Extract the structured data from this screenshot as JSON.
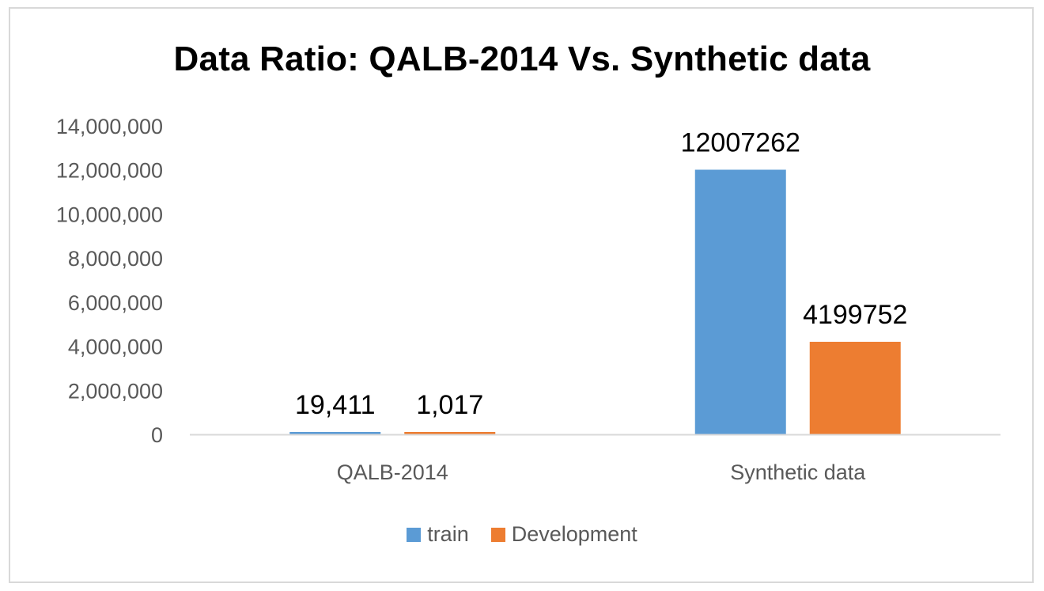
{
  "chart_data": {
    "type": "bar",
    "title": "Data Ratio: QALB-2014 Vs. Synthetic data",
    "xlabel": "",
    "ylabel": "",
    "categories": [
      "QALB-2014",
      "Synthetic data"
    ],
    "series": [
      {
        "name": "train",
        "color": "#5b9bd5",
        "values": [
          19411,
          12007262
        ],
        "labels": [
          "19,411",
          "12007262"
        ]
      },
      {
        "name": "Development",
        "color": "#ed7d31",
        "values": [
          1017,
          4199752
        ],
        "labels": [
          "1,017",
          "4199752"
        ]
      }
    ],
    "ylim": [
      0,
      14000000
    ],
    "y_ticks": [
      0,
      2000000,
      4000000,
      6000000,
      8000000,
      10000000,
      12000000,
      14000000
    ],
    "y_tick_labels": [
      "0",
      "2,000,000",
      "4,000,000",
      "6,000,000",
      "8,000,000",
      "10,000,000",
      "12,000,000",
      "14,000,000"
    ],
    "grid": false,
    "legend_position": "bottom",
    "axis_color": "#d9d9d9"
  }
}
